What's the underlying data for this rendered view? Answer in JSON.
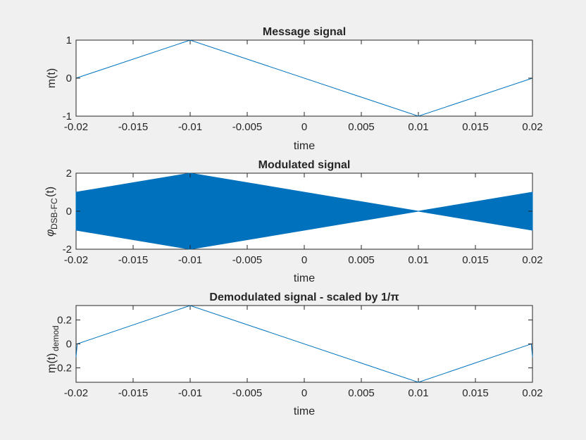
{
  "figure": {
    "background": "#f0f0f0",
    "line_color": "#0072bd"
  },
  "chart_data": [
    {
      "type": "line",
      "title": "Message signal",
      "xlabel": "time",
      "ylabel": "m(t)",
      "xlim": [
        -0.02,
        0.02
      ],
      "ylim": [
        -1,
        1
      ],
      "xticks": [
        -0.02,
        -0.015,
        -0.01,
        -0.005,
        0,
        0.005,
        0.01,
        0.015,
        0.02
      ],
      "xtick_labels": [
        "-0.02",
        "-0.015",
        "-0.01",
        "-0.005",
        "0",
        "0.005",
        "0.01",
        "0.015",
        "0.02"
      ],
      "yticks": [
        -1,
        0,
        1
      ],
      "ytick_labels": [
        "-1",
        "0",
        "1"
      ],
      "series": [
        {
          "x": [
            -0.02,
            -0.01,
            0.01,
            0.02
          ],
          "y": [
            0,
            1,
            -1,
            0
          ]
        }
      ],
      "grid": false
    },
    {
      "type": "area",
      "title": "Modulated signal",
      "xlabel": "time",
      "ylabel_main": "φ",
      "ylabel_sub": "DSB-FC",
      "ylabel_tail": "(t)",
      "xlim": [
        -0.02,
        0.02
      ],
      "ylim": [
        -2,
        2
      ],
      "xticks": [
        -0.02,
        -0.015,
        -0.01,
        -0.005,
        0,
        0.005,
        0.01,
        0.015,
        0.02
      ],
      "xtick_labels": [
        "-0.02",
        "-0.015",
        "-0.01",
        "-0.005",
        "0",
        "0.005",
        "0.01",
        "0.015",
        "0.02"
      ],
      "yticks": [
        -2,
        0,
        2
      ],
      "ytick_labels": [
        "-2",
        "0",
        "2"
      ],
      "envelope": {
        "x": [
          -0.02,
          -0.01,
          0.01,
          0.02
        ],
        "upper": [
          1,
          2,
          0,
          1
        ],
        "lower": [
          -1,
          -2,
          0,
          -1
        ]
      },
      "grid": false
    },
    {
      "type": "line",
      "title": "Demodulated signal - scaled by 1/π",
      "xlabel": "time",
      "ylabel_main": "m(t)",
      "ylabel_sub": "demod",
      "xlim": [
        -0.02,
        0.02
      ],
      "ylim": [
        -0.32,
        0.32
      ],
      "xticks": [
        -0.02,
        -0.015,
        -0.01,
        -0.005,
        0,
        0.005,
        0.01,
        0.015,
        0.02
      ],
      "xtick_labels": [
        "-0.02",
        "-0.015",
        "-0.01",
        "-0.005",
        "0",
        "0.005",
        "0.01",
        "0.015",
        "0.02"
      ],
      "yticks": [
        -0.2,
        0,
        0.2
      ],
      "ytick_labels": [
        "-0.2",
        "0",
        "0.2"
      ],
      "series": [
        {
          "x": [
            -0.02,
            -0.0199,
            -0.01,
            0.01,
            0.0199,
            0.02
          ],
          "y": [
            -0.11,
            0,
            0.32,
            -0.32,
            0,
            -0.11
          ]
        }
      ],
      "grid": false
    }
  ]
}
